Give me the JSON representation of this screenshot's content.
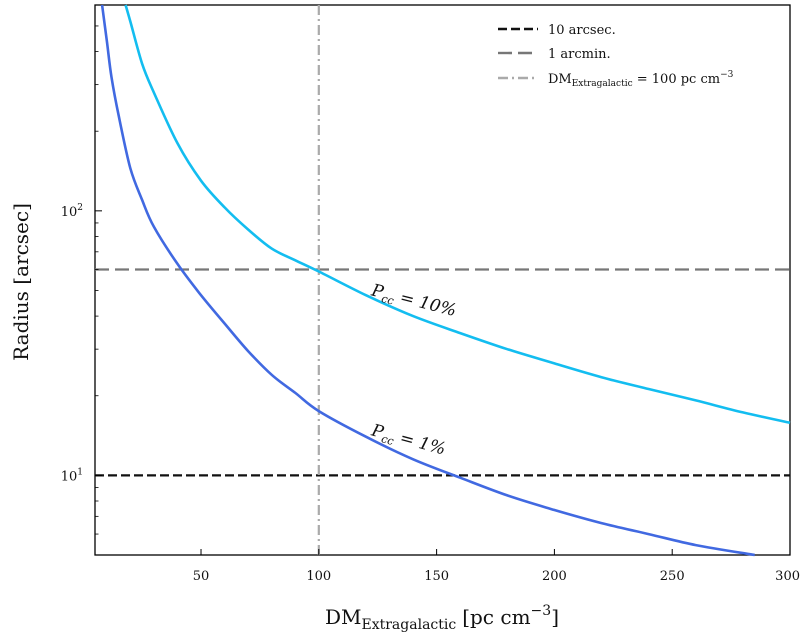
{
  "chart_data": {
    "type": "line",
    "xlabel": "DM",
    "xlabel_sub": "Extragalactic",
    "xlabel_units": "[pc cm",
    "xlabel_exp": "−3",
    "xlabel_end": "]",
    "ylabel": "Radius [arcsec]",
    "xlim": [
      5,
      300
    ],
    "ylim": [
      5,
      600
    ],
    "yscale": "log",
    "x_ticks": [
      50,
      100,
      150,
      200,
      250,
      300
    ],
    "x_tick_labels": [
      "50",
      "100",
      "150",
      "200",
      "250",
      "300"
    ],
    "y_major_ticks": [
      {
        "value": 10,
        "base": "10",
        "exp": "1"
      },
      {
        "value": 100,
        "base": "10",
        "exp": "2"
      }
    ],
    "y_minor_ticks": [
      6,
      7,
      8,
      9,
      20,
      30,
      40,
      50,
      60,
      70,
      80,
      90,
      200,
      300,
      400,
      500,
      600
    ],
    "legend_position": "top-right",
    "legend": [
      {
        "label": "10 arcsec.",
        "color": "#111111",
        "style": "dashed-short"
      },
      {
        "label": "1 arcmin.",
        "color": "#777777",
        "style": "dashed-long"
      },
      {
        "label_main": "DM",
        "label_sub": "Extragalactic",
        "label_rest": " = 100 pc cm",
        "label_exp": "−3",
        "color": "#aaaaaa",
        "style": "dash-dot"
      }
    ],
    "hlines": [
      {
        "y": 10,
        "color": "#111111",
        "style": "dashed-short"
      },
      {
        "y": 60,
        "color": "#777777",
        "style": "dashed-long"
      }
    ],
    "vlines": [
      {
        "x": 100,
        "color": "#aaaaaa",
        "style": "dash-dot"
      }
    ],
    "series": [
      {
        "color": "#13bdf0",
        "x": [
          18,
          20,
          25,
          30,
          40,
          50,
          60,
          70,
          80,
          90,
          100,
          120,
          140,
          160,
          180,
          200,
          220,
          240,
          260,
          280,
          300
        ],
        "y": [
          600,
          520,
          360,
          280,
          180,
          130,
          103,
          85,
          72,
          65,
          59,
          48,
          40,
          34.5,
          30,
          26.5,
          23.5,
          21.2,
          19.2,
          17.3,
          15.8
        ]
      },
      {
        "color": "#4169e1",
        "x": [
          8,
          10,
          12,
          15,
          20,
          25,
          30,
          40,
          50,
          60,
          70,
          80,
          90,
          100,
          120,
          140,
          160,
          180,
          200,
          220,
          240,
          260,
          285
        ],
        "y": [
          600,
          440,
          320,
          230,
          145,
          110,
          87,
          63,
          48,
          37.5,
          29.5,
          24,
          20.5,
          17.5,
          14,
          11.5,
          9.8,
          8.4,
          7.4,
          6.6,
          6,
          5.45,
          5
        ]
      }
    ],
    "annotations": [
      {
        "text_main": "P",
        "text_sub": "cc",
        "text_rest": " = 10%",
        "x": 122,
        "y": 48,
        "rotation": 14
      },
      {
        "text_main": "P",
        "text_sub": "cc",
        "text_rest": " = 1%",
        "x": 122,
        "y": 14.2,
        "rotation": 15
      }
    ]
  }
}
